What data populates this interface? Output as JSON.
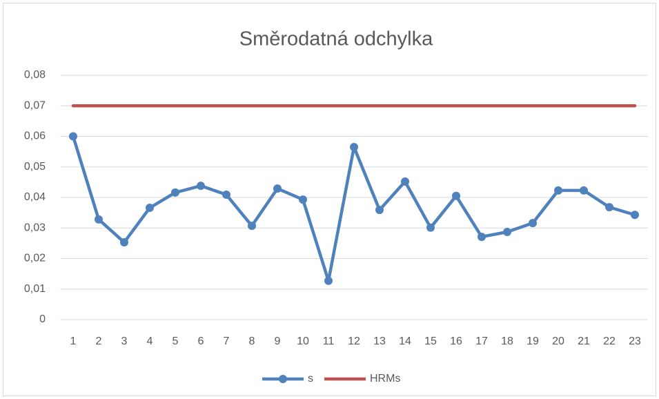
{
  "chart_data": {
    "type": "line",
    "title": "Směrodatná odchylka",
    "categories": [
      "1",
      "2",
      "3",
      "4",
      "5",
      "6",
      "7",
      "8",
      "9",
      "10",
      "11",
      "12",
      "13",
      "14",
      "15",
      "16",
      "17",
      "18",
      "19",
      "20",
      "21",
      "22",
      "23"
    ],
    "series": [
      {
        "name": "s",
        "color": "#4f81bd",
        "markers": true,
        "values": [
          0.06,
          0.0328,
          0.0253,
          0.0366,
          0.0416,
          0.0438,
          0.0409,
          0.0307,
          0.0429,
          0.0393,
          0.0127,
          0.0565,
          0.0359,
          0.0452,
          0.0301,
          0.0405,
          0.0271,
          0.0287,
          0.0316,
          0.0423,
          0.0423,
          0.0368,
          0.0343
        ]
      },
      {
        "name": "HRMs",
        "color": "#c0504d",
        "markers": false,
        "values": [
          0.07,
          0.07,
          0.07,
          0.07,
          0.07,
          0.07,
          0.07,
          0.07,
          0.07,
          0.07,
          0.07,
          0.07,
          0.07,
          0.07,
          0.07,
          0.07,
          0.07,
          0.07,
          0.07,
          0.07,
          0.07,
          0.07,
          0.07
        ]
      }
    ],
    "ylim": [
      0,
      0.08
    ],
    "yticks": [
      0,
      {
        "value": 0.01,
        "label": "0,01"
      },
      {
        "value": 0.02,
        "label": "0,02"
      },
      {
        "value": 0.03,
        "label": "0,03"
      },
      {
        "value": 0.04,
        "label": "0,04"
      },
      {
        "value": 0.05,
        "label": "0,05"
      },
      {
        "value": 0.06,
        "label": "0,06"
      },
      {
        "value": 0.07,
        "label": "0,07"
      },
      {
        "value": 0.08,
        "label": "0,08"
      }
    ],
    "grid": true,
    "legend": "bottom"
  }
}
